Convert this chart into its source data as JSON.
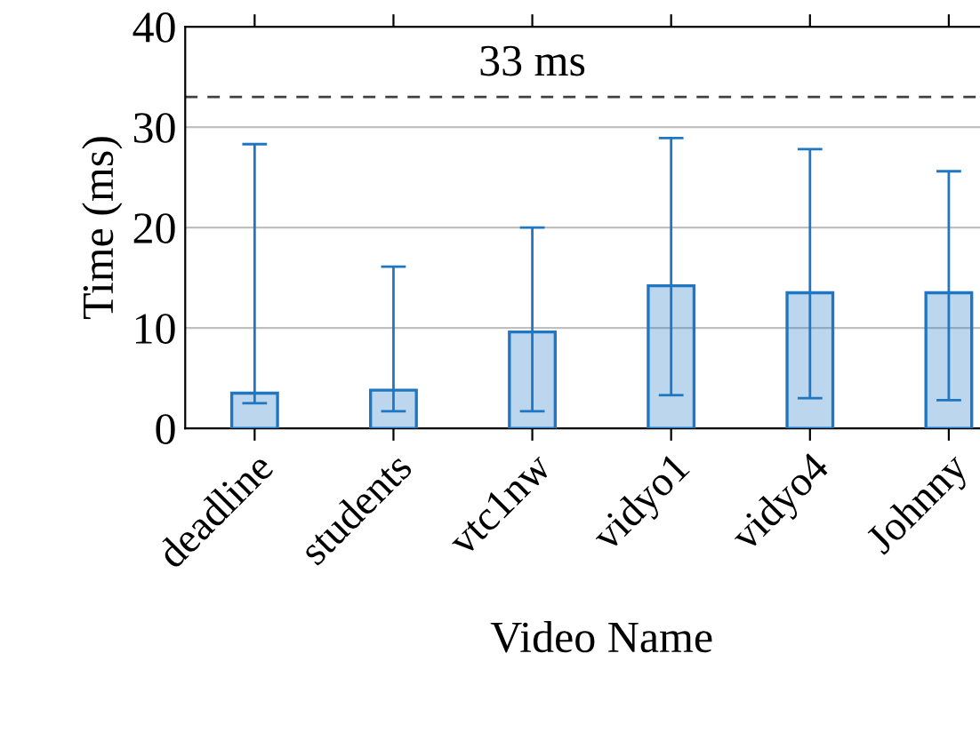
{
  "chart_data": {
    "type": "bar",
    "xlabel": "Video Name",
    "ylabel": "Time (ms)",
    "categories": [
      "deadline",
      "students",
      "vtc1nw",
      "vidyo1",
      "vidyo4",
      "Johnny"
    ],
    "series": [
      {
        "color": "#1f77c4",
        "values": [
          3.5,
          3.8,
          9.6,
          14.2,
          13.5,
          13.5
        ],
        "errors": [
          [
            2.5,
            28.3
          ],
          [
            1.7,
            16.1
          ],
          [
            1.7,
            20.0
          ],
          [
            3.3,
            28.9
          ],
          [
            3.0,
            27.8
          ],
          [
            2.8,
            25.6
          ]
        ]
      }
    ],
    "ylim": [
      0,
      40
    ],
    "yticks": [
      0,
      10,
      20,
      30,
      40
    ],
    "grid": "y",
    "ref_lines": [
      {
        "axis": "y",
        "value": 33,
        "label": "33 ms",
        "line_style": "dashed",
        "color": "#404040"
      }
    ]
  }
}
